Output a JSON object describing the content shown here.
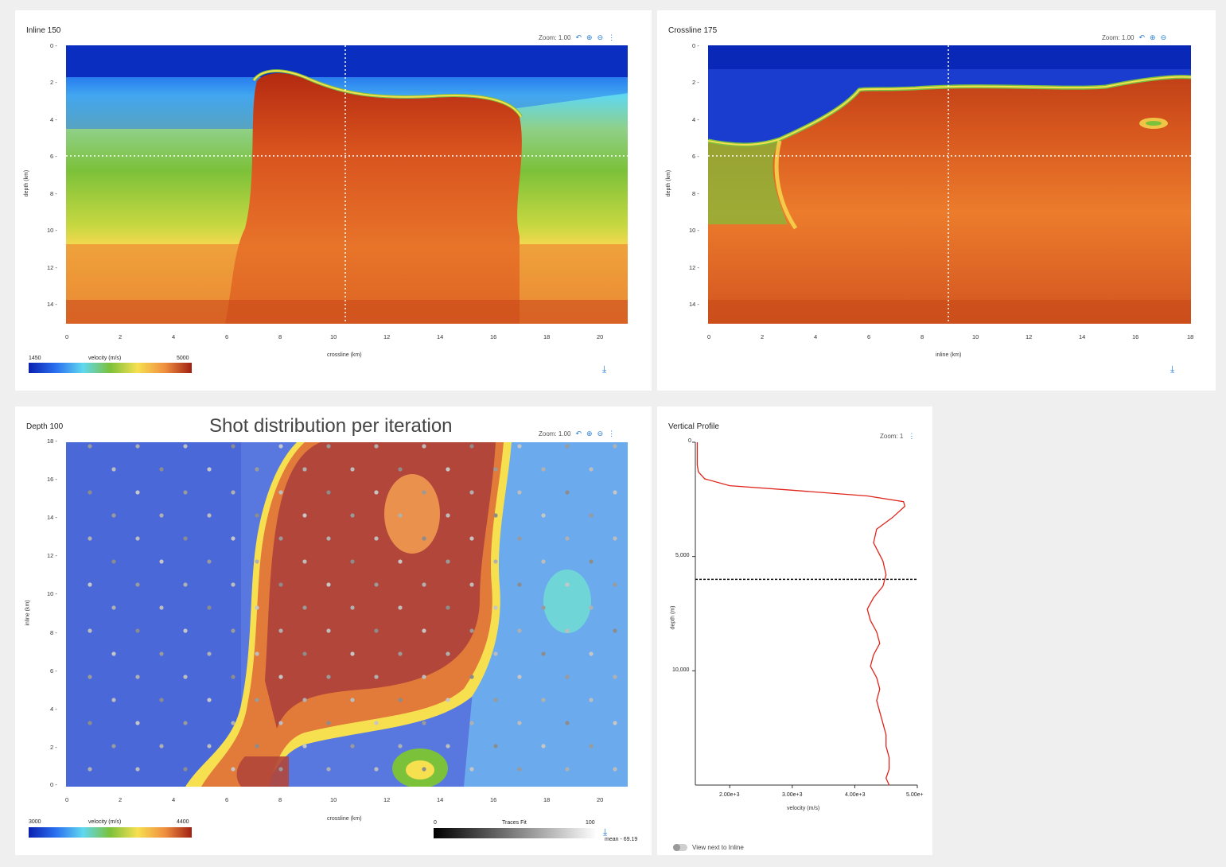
{
  "overlay_title": "Shot distribution per iteration",
  "common": {
    "zoom_label": "Zoom: 1.00",
    "zoom_short": "Zoom: 1"
  },
  "inline": {
    "title": "Inline 150",
    "xlabel": "crossline (km)",
    "ylabel": "depth (km)",
    "xticks": [
      "0",
      "2",
      "4",
      "6",
      "8",
      "10",
      "12",
      "14",
      "16",
      "18",
      "20"
    ],
    "yticks": [
      "0 -",
      "2 -",
      "4 -",
      "6 -",
      "8 -",
      "10 -",
      "12 -",
      "14 -"
    ],
    "colorbar": {
      "min": "1450",
      "label": "velocity (m/s)",
      "max": "5000"
    },
    "cross_x_km": 10.5,
    "cross_y_km": 6
  },
  "crossline": {
    "title": "Crossline 175",
    "xlabel": "inline (km)",
    "ylabel": "depth (km)",
    "xticks": [
      "0",
      "2",
      "4",
      "6",
      "8",
      "10",
      "12",
      "14",
      "16",
      "18"
    ],
    "yticks": [
      "0 -",
      "2 -",
      "4 -",
      "6 -",
      "8 -",
      "10 -",
      "12 -",
      "14 -"
    ],
    "cross_x_km": 9,
    "cross_y_km": 6
  },
  "depth": {
    "title": "Depth 100",
    "xlabel": "crossline (km)",
    "ylabel": "inline (km)",
    "xticks": [
      "0",
      "2",
      "4",
      "6",
      "8",
      "10",
      "12",
      "14",
      "16",
      "18",
      "20"
    ],
    "yticks": [
      "18 -",
      "16 -",
      "14 -",
      "12 -",
      "10 -",
      "8 -",
      "6 -",
      "4 -",
      "2 -",
      "0 -"
    ],
    "colorbar": {
      "min": "3000",
      "label": "velocity (m/s)",
      "max": "4400"
    },
    "traces": {
      "min": "0",
      "label": "Traces Fit",
      "max": "100",
      "mean": "mean - 69.19"
    }
  },
  "profile": {
    "title": "Vertical Profile",
    "xlabel": "velocity (m/s)",
    "ylabel": "depth (m)",
    "xticks": [
      "2.00e+3",
      "3.00e+3",
      "4.00e+3",
      "5.00e+"
    ],
    "yticks": [
      "0",
      "5,000",
      "10,000"
    ],
    "toggle_label": "View next to Inline"
  },
  "colors": {
    "accent": "#2a7ed0",
    "curve": "#e0241b"
  },
  "icons": [
    "undo-icon",
    "zoom-in-icon",
    "zoom-out-icon",
    "more-vert-icon",
    "download-icon"
  ],
  "chart_data": [
    {
      "type": "line",
      "title": "Vertical Profile",
      "xlabel": "velocity (m/s)",
      "ylabel": "depth (m)",
      "xlim": [
        1450,
        5000
      ],
      "ylim": [
        15000,
        0
      ],
      "series": [
        {
          "x": [
            1480,
            1480,
            1480,
            1500,
            1600,
            2000,
            3000,
            4200,
            4780,
            4800,
            4600,
            4350,
            4300,
            4450,
            4500,
            4450,
            4300,
            4200,
            4250,
            4350,
            4400,
            4300,
            4250,
            4350,
            4400,
            4350,
            4400,
            4450,
            4500,
            4500,
            4550,
            4550,
            4500,
            4550
          ],
          "y": [
            0,
            500,
            1000,
            1300,
            1600,
            1900,
            2100,
            2350,
            2600,
            2800,
            3300,
            3800,
            4400,
            5200,
            5800,
            6300,
            6800,
            7300,
            7800,
            8300,
            8800,
            9300,
            9800,
            10300,
            10800,
            11300,
            11800,
            12300,
            12800,
            13300,
            13800,
            14300,
            14700,
            15000
          ]
        }
      ],
      "marker_depth": 6000
    }
  ]
}
